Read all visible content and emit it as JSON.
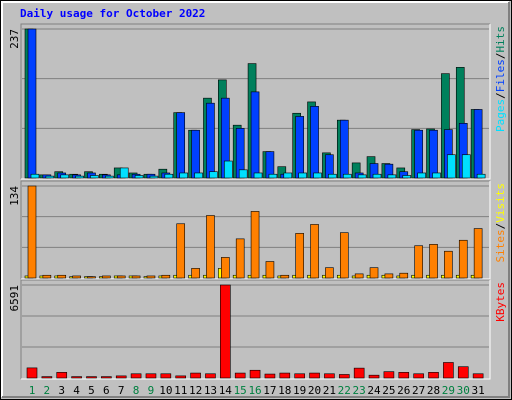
{
  "title": "Daily usage for October 2022",
  "chart_data": [
    {
      "type": "bar",
      "grid_divisions": 3,
      "legend_separator": "/",
      "ylim": [
        0,
        237
      ],
      "yticks": [
        237
      ],
      "series": [
        {
          "name": "Hits",
          "color": "#00805c",
          "values": [
            237,
            5,
            10,
            6,
            10,
            6,
            16,
            8,
            6,
            14,
            104,
            76,
            127,
            156,
            84,
            182,
            42,
            18,
            103,
            121,
            40,
            92,
            24,
            34,
            23,
            16,
            77,
            78,
            166,
            176,
            109
          ]
        },
        {
          "name": "Files",
          "color": "#0040ff",
          "values": [
            237,
            5,
            8,
            5,
            8,
            5,
            5,
            6,
            6,
            8,
            104,
            76,
            119,
            127,
            79,
            137,
            42,
            6,
            98,
            114,
            37,
            92,
            8,
            23,
            22,
            10,
            76,
            76,
            77,
            87,
            109
          ]
        },
        {
          "name": "Pages",
          "color": "#00e0ff",
          "values": [
            6,
            3,
            5,
            3,
            4,
            3,
            16,
            4,
            3,
            6,
            8,
            8,
            10,
            27,
            13,
            8,
            6,
            8,
            8,
            8,
            6,
            6,
            5,
            6,
            5,
            4,
            8,
            8,
            37,
            37,
            6
          ]
        }
      ]
    },
    {
      "type": "bar",
      "grid_divisions": 3,
      "legend_separator": "/",
      "ylim": [
        0,
        134
      ],
      "yticks": [
        134
      ],
      "series": [
        {
          "name": "Visits",
          "color": "#ffff00",
          "values": [
            3,
            3,
            3,
            2,
            2,
            2,
            3,
            3,
            2,
            3,
            4,
            4,
            4,
            14,
            4,
            4,
            4,
            3,
            4,
            4,
            4,
            4,
            3,
            4,
            4,
            3,
            4,
            4,
            4,
            4,
            4
          ]
        },
        {
          "name": "Sites",
          "color": "#ff8000",
          "values": [
            134,
            4,
            4,
            3,
            2,
            3,
            3,
            3,
            3,
            4,
            79,
            14,
            91,
            30,
            57,
            97,
            24,
            4,
            65,
            78,
            15,
            66,
            6,
            15,
            6,
            7,
            47,
            49,
            39,
            55,
            72
          ]
        }
      ]
    },
    {
      "type": "bar",
      "grid_divisions": 3,
      "ylim": [
        0,
        6591
      ],
      "yticks": [
        6591
      ],
      "categories": [
        "1",
        "2",
        "3",
        "4",
        "5",
        "6",
        "7",
        "8",
        "9",
        "10",
        "11",
        "12",
        "13",
        "14",
        "15",
        "16",
        "17",
        "18",
        "19",
        "20",
        "21",
        "22",
        "23",
        "24",
        "25",
        "26",
        "27",
        "28",
        "29",
        "30",
        "31"
      ],
      "category_colors": [
        "#008040",
        "#008040",
        "#000000",
        "#000000",
        "#000000",
        "#000000",
        "#000000",
        "#008040",
        "#008040",
        "#000000",
        "#000000",
        "#000000",
        "#000000",
        "#000000",
        "#008040",
        "#008040",
        "#000000",
        "#000000",
        "#000000",
        "#000000",
        "#000000",
        "#008040",
        "#008040",
        "#000000",
        "#000000",
        "#000000",
        "#000000",
        "#000000",
        "#008040",
        "#008040",
        "#000000"
      ],
      "series": [
        {
          "name": "KBytes",
          "color": "#ff0000",
          "values": [
            716,
            100,
            400,
            100,
            100,
            100,
            150,
            300,
            300,
            300,
            150,
            350,
            300,
            6591,
            350,
            550,
            280,
            350,
            300,
            350,
            300,
            250,
            700,
            200,
            450,
            400,
            300,
            400,
            1100,
            800,
            300
          ]
        }
      ]
    }
  ]
}
